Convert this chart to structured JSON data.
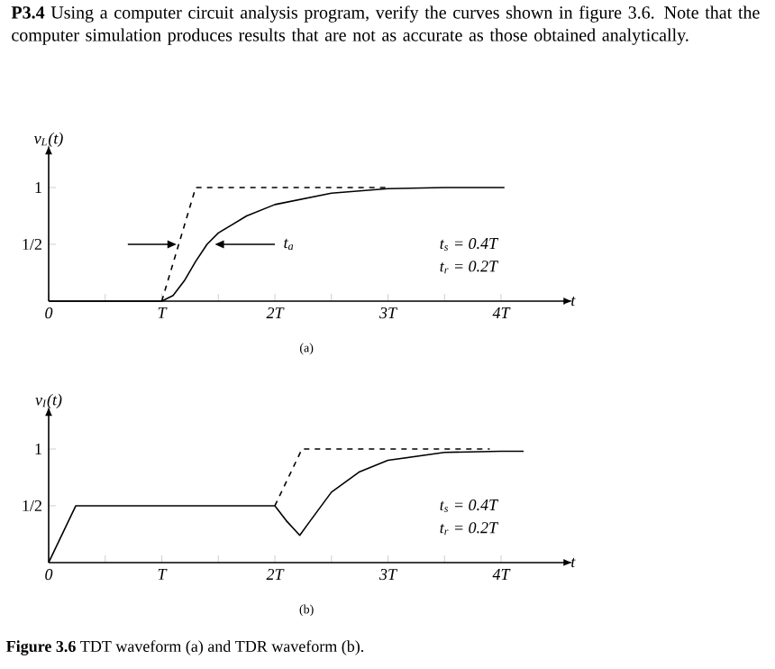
{
  "chart_data": [
    {
      "type": "line",
      "title": "**P3.4**  Using a computer circuit analysis program, verify the curves shown in figure 3.6. Note that the computer simulation produces results that are not as accurate as those obtained analytically.",
      "xlabel": "t",
      "ylabel": "v$_{L}$(t)",
      "marker": "none",
      "xlim": [
        0,
        4.56
      ],
      "ylim": [
        0,
        1.3
      ],
      "xticks": [
        {
          "value": 0,
          "label": "0"
        },
        {
          "value": 0.5,
          "label": null
        },
        {
          "value": 1,
          "label": "T"
        },
        {
          "value": 1.5,
          "label": null
        },
        {
          "value": 2,
          "label": "2T"
        },
        {
          "value": 2.5,
          "label": null
        },
        {
          "value": 3,
          "label": "3T"
        },
        {
          "value": 3.5,
          "label": null
        },
        {
          "value": 4,
          "label": "4T"
        }
      ],
      "yticks": [
        {
          "value": 0.5,
          "label": "1/2"
        },
        1
      ],
      "series": [
        {
          "color": "#000000",
          "line_style": "dashed",
          "x": [
            1,
            1.3,
            3.0
          ],
          "values": [
            0,
            1,
            1
          ]
        },
        {
          "color": "#000000",
          "line_style": "solid",
          "x": [
            0,
            1,
            1.1,
            1.2,
            1.3,
            1.4,
            1.5,
            1.75,
            2,
            2.5,
            3,
            3.5,
            4.03
          ],
          "values": [
            0,
            0,
            0.05,
            0.18,
            0.35,
            0.5,
            0.6,
            0.75,
            0.85,
            0.95,
            0.99,
            1,
            1
          ]
        }
      ],
      "annotations": [
        "t$_{s}$ = 0.4T",
        "t$_{r}$ = 0.2T",
        "(a)",
        "t$_{a}$"
      ]
    },
    {
      "type": "line",
      "xlabel": "t",
      "ylabel": "v$_{I}$(t)",
      "marker": "none",
      "xlim": [
        0,
        4.56
      ],
      "ylim": [
        0,
        1.3
      ],
      "xticks": [
        {
          "value": 0,
          "label": "0"
        },
        {
          "value": 0.5,
          "label": null
        },
        {
          "value": 1,
          "label": "T"
        },
        {
          "value": 1.5,
          "label": null
        },
        {
          "value": 2,
          "label": "2T"
        },
        {
          "value": 2.5,
          "label": null
        },
        {
          "value": 3,
          "label": "3T"
        },
        {
          "value": 3.5,
          "label": null
        },
        {
          "value": 4,
          "label": "4T"
        }
      ],
      "yticks": [
        {
          "value": 0.5,
          "label": "1/2"
        },
        1
      ],
      "series": [
        {
          "color": "#000000",
          "line_style": "dashed",
          "x": [
            2,
            2.24,
            3.9
          ],
          "values": [
            0.5,
            1,
            1
          ]
        },
        {
          "color": "#000000",
          "line_style": "solid",
          "x": [
            0,
            0.24,
            2,
            2.1,
            2.22,
            2.3,
            2.5,
            2.75,
            3,
            3.5,
            4,
            4.2
          ],
          "values": [
            0,
            0.5,
            0.5,
            0.37,
            0.24,
            0.35,
            0.62,
            0.8,
            0.9,
            0.97,
            0.98,
            0.98
          ]
        }
      ],
      "annotations": [
        "t$_{s}$ = 0.4T",
        "t$_{r}$ = 0.2T",
        "(b)",
        "**Figure 3.6**  TDT waveform (a) and TDR waveform (b)."
      ]
    }
  ]
}
